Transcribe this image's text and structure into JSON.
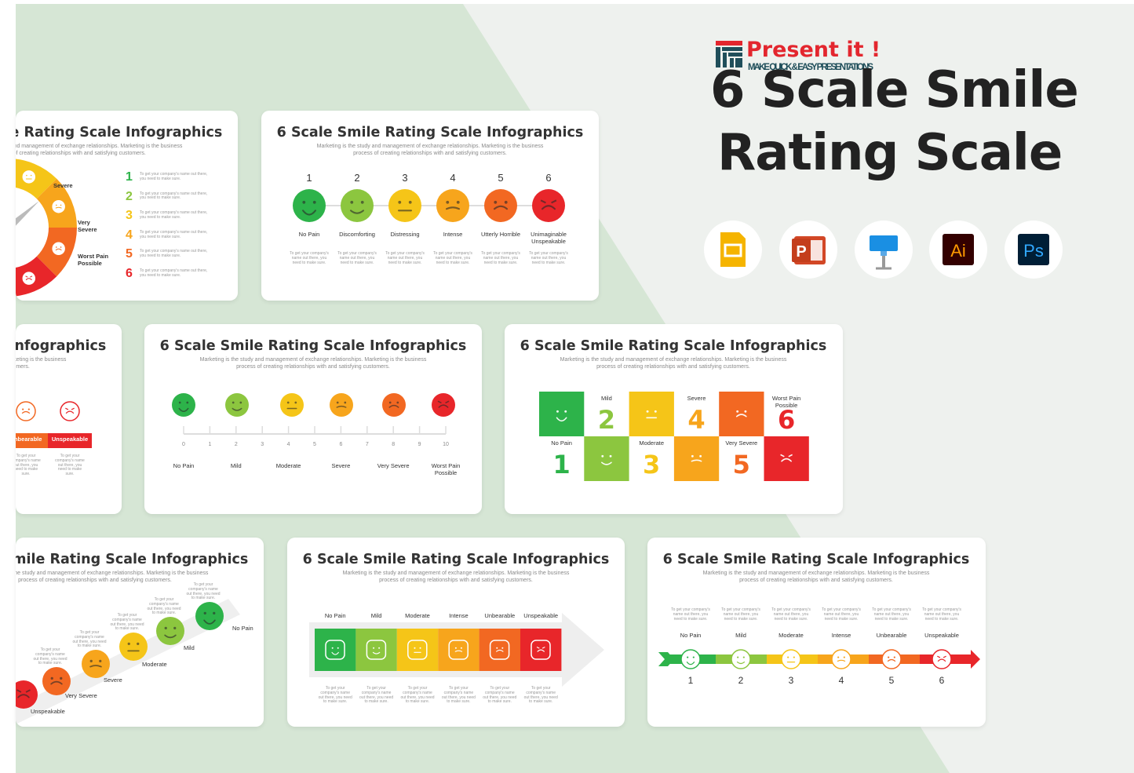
{
  "brand": {
    "name": "Present it !",
    "tagline": "MAKE QUICK & EASY PRESENTATIONS"
  },
  "headline": [
    "6 Scale Smile",
    "Rating Scale"
  ],
  "app_icons": [
    "P",
    "Ai",
    "Ps"
  ],
  "slide_title": "6 Scale Smile Rating Scale Infographics",
  "slide_subtitle": [
    "Marketing is the study and management of exchange relationships. Marketing is the business",
    "process of creating relationships with and satisfying customers."
  ],
  "note": "To get your company's name out there, you need to make sure.",
  "slides": {
    "gauge": {
      "labels": [
        "Severe",
        "Very Severe",
        "Worst Pain Possible"
      ],
      "numbers": [
        1,
        2,
        3,
        4,
        5,
        6
      ]
    },
    "numbered": {
      "numbers": [
        1,
        2,
        3,
        4,
        5,
        6
      ],
      "labels": [
        "No Pain",
        "Discomforting",
        "Distressing",
        "Intense",
        "Utterly Horrible",
        "Unimaginable Unspeakable"
      ]
    },
    "boxes": {
      "labels": [
        "Unbearable",
        "Unspeakable"
      ]
    },
    "ruler": {
      "scale": [
        0,
        1,
        2,
        3,
        4,
        5,
        6,
        7,
        8,
        9,
        10
      ],
      "labels": [
        "No Pain",
        "Mild",
        "Moderate",
        "Severe",
        "Very Severe",
        "Worst Pain Possible"
      ]
    },
    "grid": {
      "numbers": [
        1,
        2,
        3,
        4,
        5,
        6
      ],
      "labels": [
        "No Pain",
        "Mild",
        "Moderate",
        "Severe",
        "Very Severe",
        "Worst Pain Possible"
      ]
    },
    "stairs": {
      "labels": [
        "No Pain",
        "Mild",
        "Moderate",
        "Severe",
        "Very Severe",
        "Unspeakable"
      ]
    },
    "bar": {
      "labels": [
        "No Pain",
        "Mild",
        "Moderate",
        "Intense",
        "Unbearable",
        "Unspeakable"
      ]
    },
    "arrow": {
      "labels": [
        "No Pain",
        "Mild",
        "Moderate",
        "Intense",
        "Unbearable",
        "Unspeakable"
      ],
      "numbers": [
        1,
        2,
        3,
        4,
        5,
        6
      ]
    }
  }
}
